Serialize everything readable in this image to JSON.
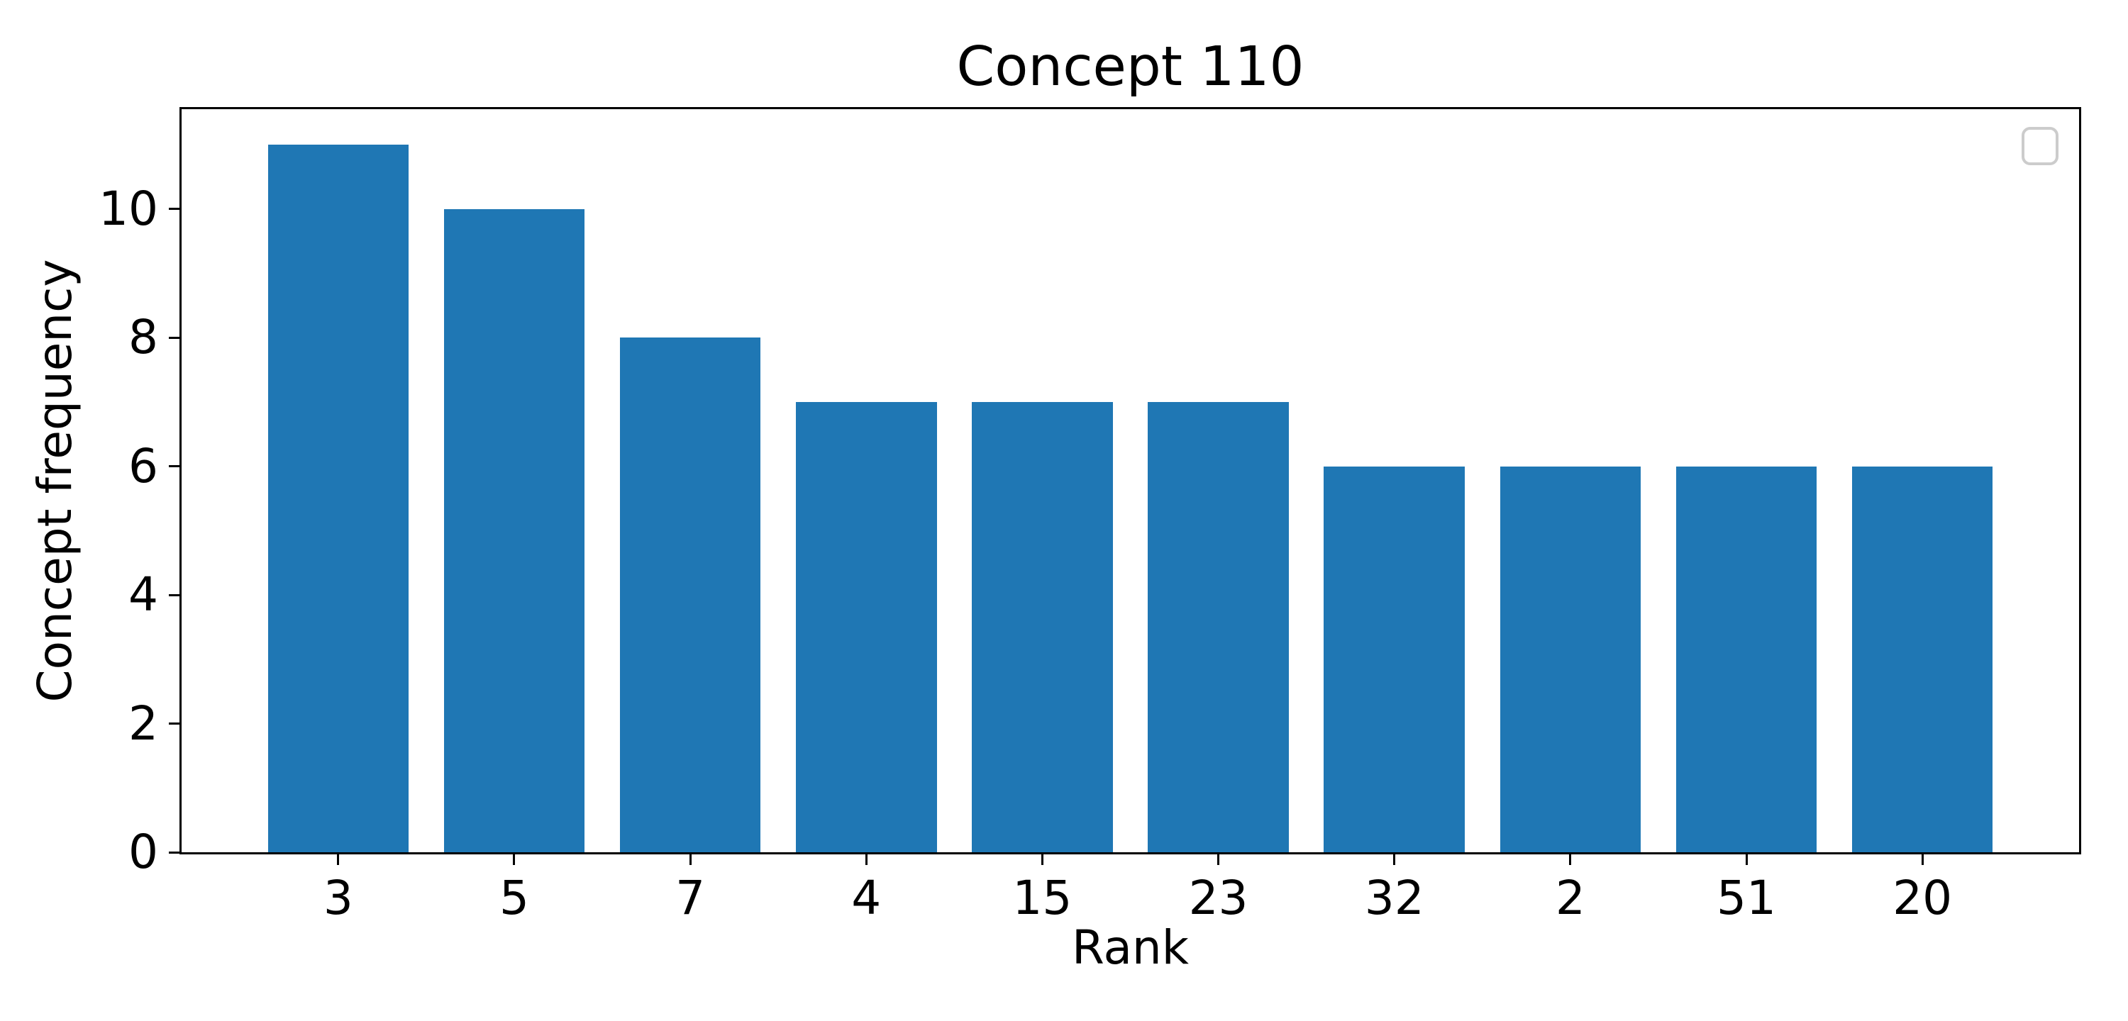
{
  "figure": {
    "background": "#ffffff"
  },
  "chart_data": {
    "type": "bar",
    "title": "Concept 110",
    "xlabel": "Rank",
    "ylabel": "Concept frequency",
    "categories": [
      "3",
      "5",
      "7",
      "4",
      "15",
      "23",
      "32",
      "2",
      "51",
      "20"
    ],
    "values": [
      11,
      10,
      8,
      7,
      7,
      7,
      6,
      6,
      6,
      6
    ],
    "bar_color": "#1f77b4",
    "bar_width": 0.8,
    "yticks": [
      0,
      2,
      4,
      6,
      8,
      10
    ],
    "ylim": [
      0,
      11.55
    ],
    "xlim": [
      -0.89,
      9.89
    ],
    "grid": false,
    "spine_color": "#000000",
    "legend": {
      "visible": true,
      "entries": [],
      "position": "upper right",
      "border_color": "#cccccc"
    }
  }
}
